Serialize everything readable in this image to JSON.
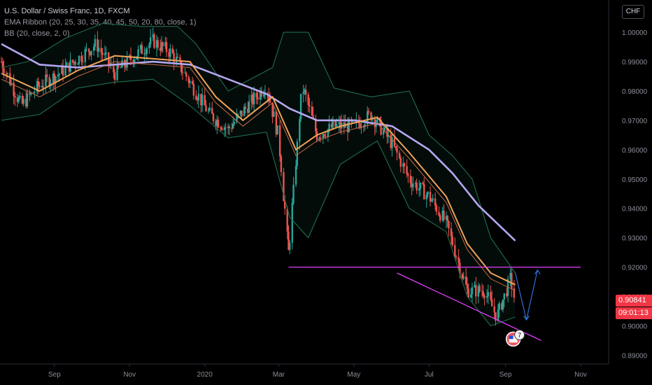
{
  "legend": {
    "title": "U.S. Dollar / Swiss Franc, 1D, FXCM",
    "ema": "EMA Ribbon (20, 25, 30, 35, 40, 45, 50, 20, 80, close, 1)",
    "bb": "BB (20, close, 2, 0)"
  },
  "currency_button": "CHF",
  "price_tag": {
    "price": "0.90841",
    "countdown": "09:01:13"
  },
  "badge_text": "7",
  "colors": {
    "background": "#000000",
    "up_candle": "#26a69a",
    "down_candle": "#ef5350",
    "bb_band": "#1f6e4f",
    "ema_fast": "#f0a259",
    "ema_slow": "#b4a7f0",
    "support_line": "#e040fb",
    "arrow": "#2f6fd4",
    "price_tag": "#f23645"
  },
  "chart_data": {
    "type": "line",
    "y_axis": {
      "min": 0.887,
      "max": 1.011,
      "ticks": [
        "1.00000",
        "0.99000",
        "0.98000",
        "0.97000",
        "0.96000",
        "0.95000",
        "0.94000",
        "0.93000",
        "0.92000",
        "0.91000",
        "0.90000",
        "0.89000"
      ],
      "tick_values": [
        1.0,
        0.99,
        0.98,
        0.97,
        0.96,
        0.95,
        0.94,
        0.93,
        0.92,
        0.91,
        0.9,
        0.89
      ]
    },
    "x_axis": {
      "labels": [
        "Sep",
        "Nov",
        "2020",
        "Mar",
        "May",
        "Jul",
        "Sep",
        "Nov"
      ],
      "label_dates": [
        "2019-09-01",
        "2019-11-01",
        "2020-01-01",
        "2020-03-01",
        "2020-05-01",
        "2020-07-01",
        "2020-09-01",
        "2020-11-01"
      ]
    },
    "series": [
      {
        "key": "price",
        "points": [
          [
            "2019-07-20",
            0.99
          ],
          [
            "2019-08-05",
            0.975
          ],
          [
            "2019-08-20",
            0.982
          ],
          [
            "2019-09-05",
            0.986
          ],
          [
            "2019-09-20",
            0.991
          ],
          [
            "2019-10-05",
            0.996
          ],
          [
            "2019-10-20",
            0.986
          ],
          [
            "2019-11-05",
            0.992
          ],
          [
            "2019-11-20",
            0.997
          ],
          [
            "2019-12-05",
            0.993
          ],
          [
            "2019-12-20",
            0.983
          ],
          [
            "2020-01-05",
            0.972
          ],
          [
            "2020-01-20",
            0.967
          ],
          [
            "2020-02-05",
            0.975
          ],
          [
            "2020-02-20",
            0.982
          ],
          [
            "2020-03-01",
            0.964
          ],
          [
            "2020-03-09",
            0.925
          ],
          [
            "2020-03-20",
            0.982
          ],
          [
            "2020-04-01",
            0.965
          ],
          [
            "2020-04-15",
            0.968
          ],
          [
            "2020-05-01",
            0.968
          ],
          [
            "2020-05-15",
            0.972
          ],
          [
            "2020-06-01",
            0.962
          ],
          [
            "2020-06-15",
            0.95
          ],
          [
            "2020-07-01",
            0.944
          ],
          [
            "2020-07-15",
            0.935
          ],
          [
            "2020-08-01",
            0.912
          ],
          [
            "2020-08-15",
            0.912
          ],
          [
            "2020-08-25",
            0.903
          ],
          [
            "2020-09-05",
            0.916
          ],
          [
            "2020-09-09",
            0.908
          ]
        ]
      },
      {
        "key": "ema_fast",
        "points": [
          [
            "2019-07-20",
            0.986
          ],
          [
            "2019-08-20",
            0.98
          ],
          [
            "2019-09-20",
            0.987
          ],
          [
            "2019-10-20",
            0.992
          ],
          [
            "2019-11-20",
            0.991
          ],
          [
            "2019-12-20",
            0.99
          ],
          [
            "2020-01-10",
            0.978
          ],
          [
            "2020-02-01",
            0.97
          ],
          [
            "2020-02-25",
            0.978
          ],
          [
            "2020-03-15",
            0.96
          ],
          [
            "2020-04-01",
            0.965
          ],
          [
            "2020-04-20",
            0.968
          ],
          [
            "2020-05-20",
            0.971
          ],
          [
            "2020-06-15",
            0.959
          ],
          [
            "2020-07-15",
            0.944
          ],
          [
            "2020-08-01",
            0.928
          ],
          [
            "2020-08-20",
            0.918
          ],
          [
            "2020-09-09",
            0.914
          ]
        ]
      },
      {
        "key": "ema_slow",
        "points": [
          [
            "2019-07-20",
            0.996
          ],
          [
            "2019-08-20",
            0.989
          ],
          [
            "2019-09-20",
            0.988
          ],
          [
            "2019-10-20",
            0.989
          ],
          [
            "2019-11-20",
            0.99
          ],
          [
            "2019-12-20",
            0.989
          ],
          [
            "2020-01-20",
            0.984
          ],
          [
            "2020-02-20",
            0.979
          ],
          [
            "2020-03-10",
            0.974
          ],
          [
            "2020-04-01",
            0.97
          ],
          [
            "2020-05-01",
            0.97
          ],
          [
            "2020-06-01",
            0.968
          ],
          [
            "2020-07-01",
            0.96
          ],
          [
            "2020-07-20",
            0.952
          ],
          [
            "2020-08-10",
            0.941
          ],
          [
            "2020-09-09",
            0.929
          ]
        ]
      },
      {
        "key": "bb_upper",
        "points": [
          [
            "2019-07-20",
            0.988
          ],
          [
            "2019-08-10",
            0.99
          ],
          [
            "2019-09-10",
            0.998
          ],
          [
            "2019-10-10",
            1.003
          ],
          [
            "2019-11-10",
            1.002
          ],
          [
            "2019-12-10",
            1.002
          ],
          [
            "2019-12-25",
            0.996
          ],
          [
            "2020-01-20",
            0.98
          ],
          [
            "2020-02-25",
            0.988
          ],
          [
            "2020-03-05",
            1.0
          ],
          [
            "2020-03-25",
            1.0
          ],
          [
            "2020-04-15",
            0.981
          ],
          [
            "2020-05-15",
            0.978
          ],
          [
            "2020-06-15",
            0.98
          ],
          [
            "2020-07-01",
            0.965
          ],
          [
            "2020-07-20",
            0.958
          ],
          [
            "2020-08-05",
            0.95
          ],
          [
            "2020-08-20",
            0.93
          ],
          [
            "2020-09-09",
            0.918
          ]
        ]
      },
      {
        "key": "bb_lower",
        "points": [
          [
            "2019-07-20",
            0.97
          ],
          [
            "2019-08-20",
            0.972
          ],
          [
            "2019-09-20",
            0.981
          ],
          [
            "2019-10-20",
            0.983
          ],
          [
            "2019-11-20",
            0.984
          ],
          [
            "2019-12-20",
            0.975
          ],
          [
            "2020-01-20",
            0.964
          ],
          [
            "2020-02-20",
            0.966
          ],
          [
            "2020-03-10",
            0.937
          ],
          [
            "2020-03-25",
            0.93
          ],
          [
            "2020-04-20",
            0.955
          ],
          [
            "2020-05-20",
            0.963
          ],
          [
            "2020-06-15",
            0.94
          ],
          [
            "2020-07-15",
            0.932
          ],
          [
            "2020-08-01",
            0.91
          ],
          [
            "2020-08-20",
            0.9
          ],
          [
            "2020-09-09",
            0.903
          ]
        ]
      }
    ],
    "annotations": {
      "support_line": {
        "from": [
          "2020-03-09",
          0.92
        ],
        "to": [
          "2020-11-01",
          0.92
        ]
      },
      "channel_line": {
        "from": [
          "2020-06-05",
          0.918
        ],
        "to": [
          "2020-09-30",
          0.895
        ]
      },
      "arrow_path": [
        [
          "2020-09-09",
          0.918
        ],
        [
          "2020-09-18",
          0.902
        ],
        [
          "2020-09-27",
          0.919
        ]
      ]
    }
  }
}
